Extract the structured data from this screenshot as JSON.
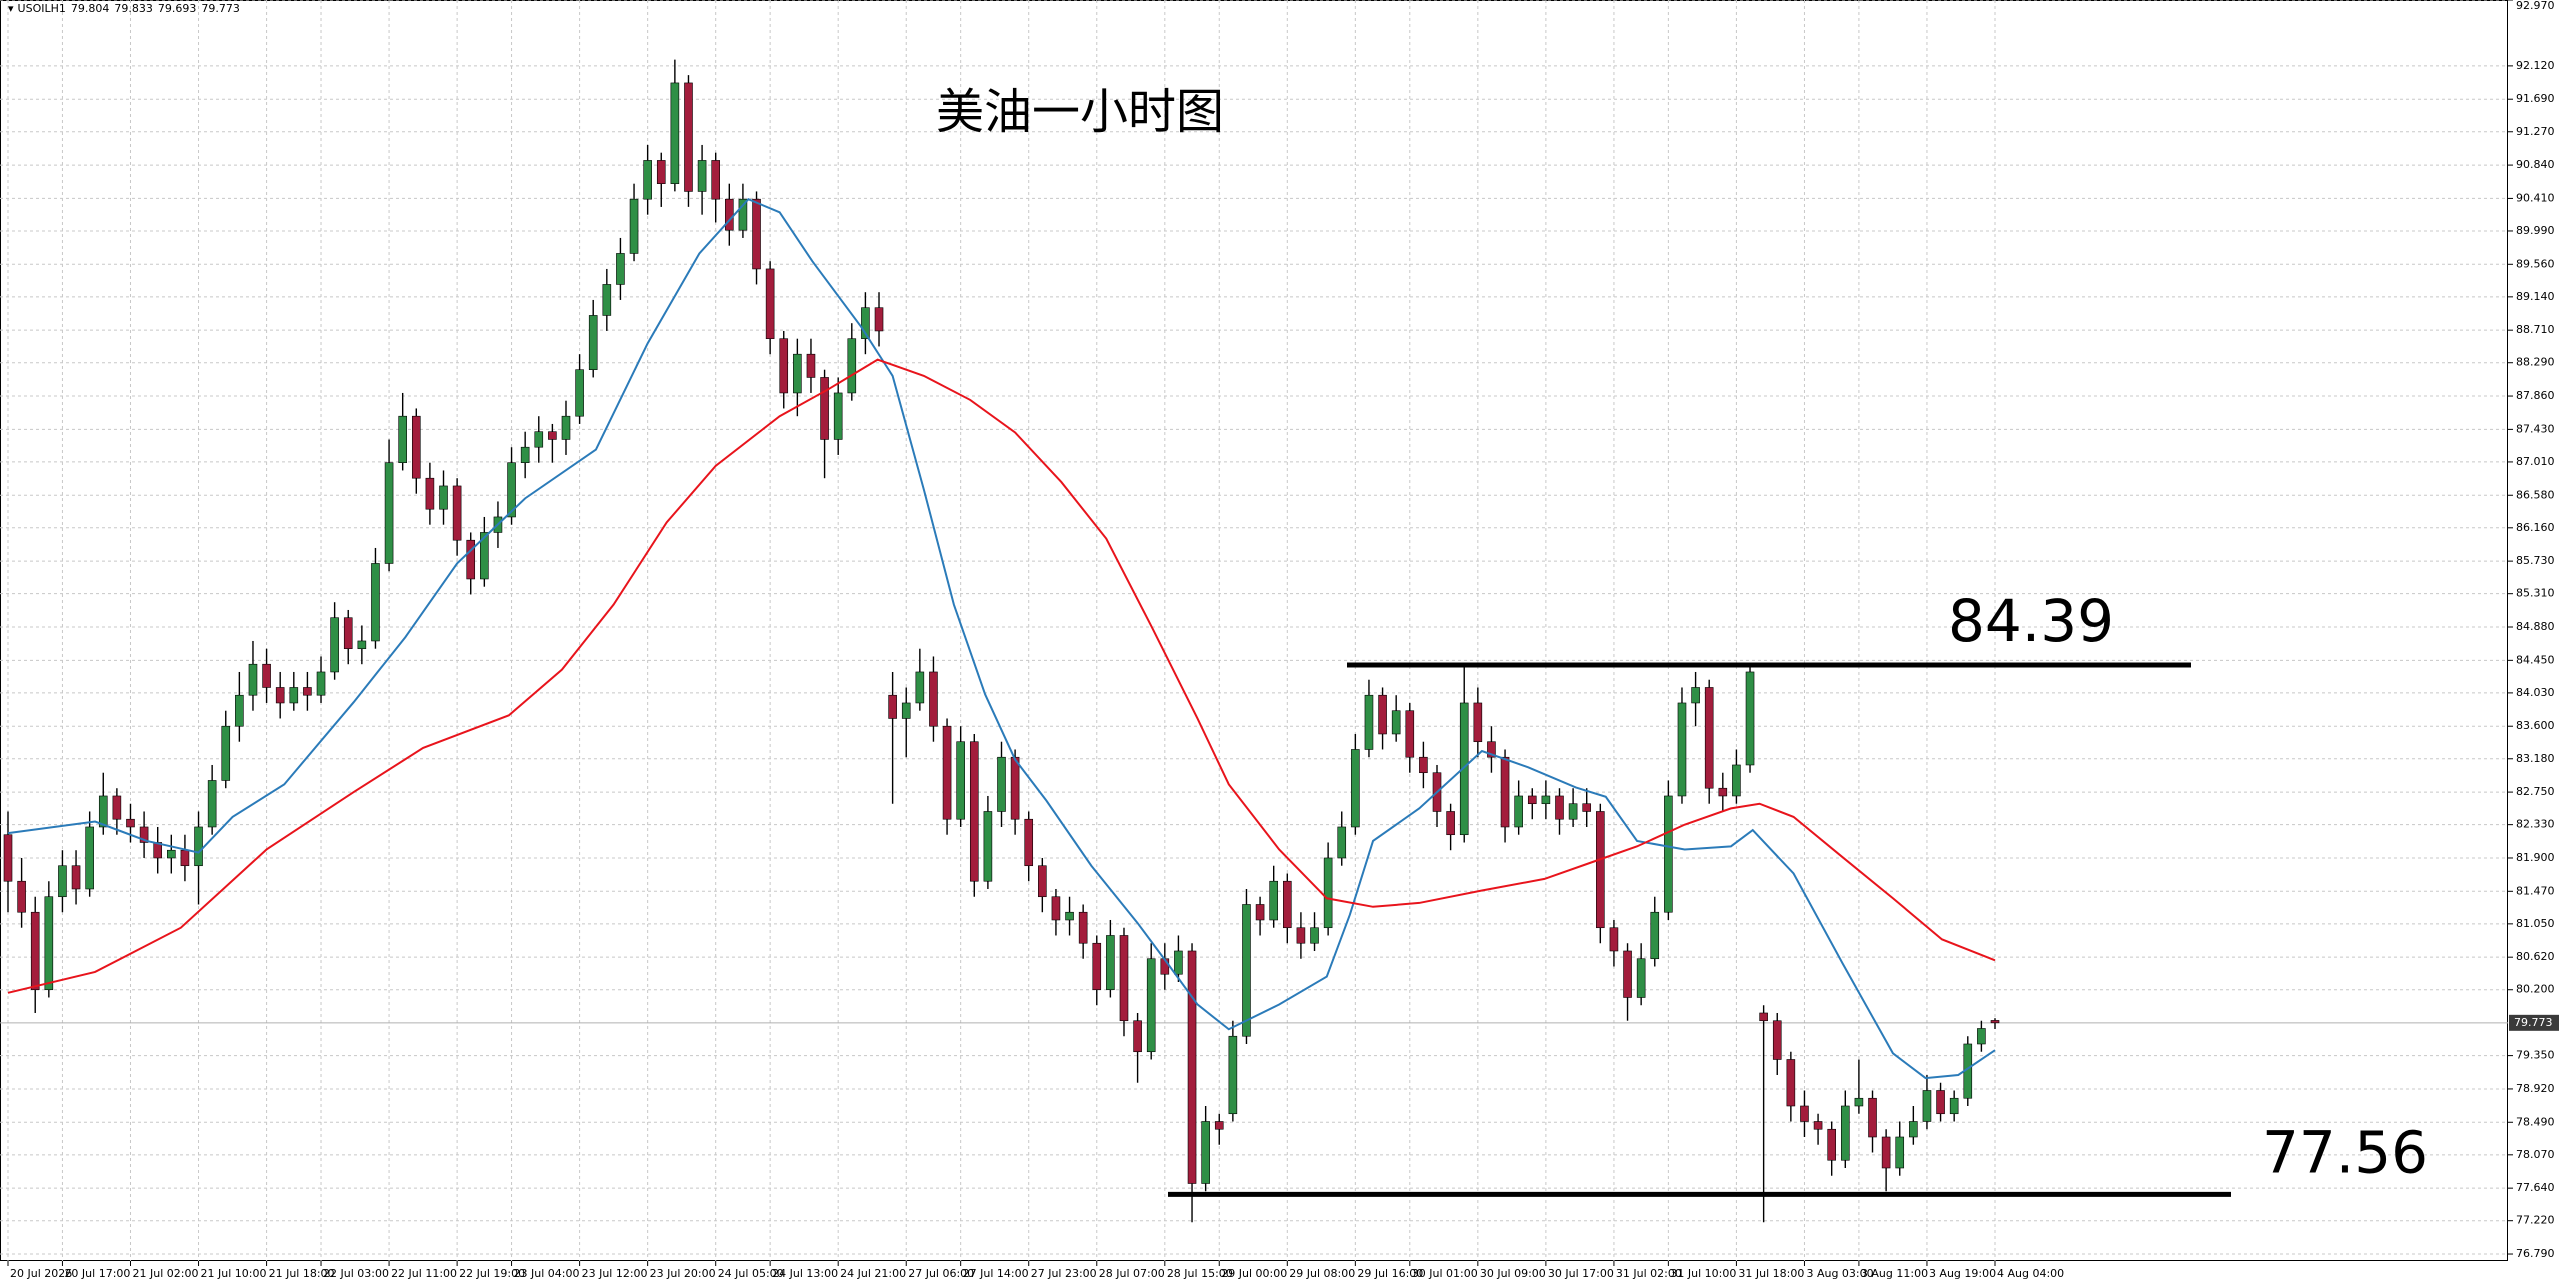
{
  "chart_data": {
    "type": "candlestick",
    "title": "美油一小时图",
    "symbol": "USOILH1",
    "up_color": "#2f8f46",
    "down_color": "#a31d3c",
    "wick_color": "#000000",
    "grid": true,
    "ylim": [
      76.7,
      92.97
    ],
    "yticks": [
      {
        "value": 76.79,
        "label": "76.790"
      },
      {
        "value": 77.22,
        "label": "77.220"
      },
      {
        "value": 77.64,
        "label": "77.640"
      },
      {
        "value": 78.07,
        "label": "78.070"
      },
      {
        "value": 78.49,
        "label": "78.490"
      },
      {
        "value": 78.92,
        "label": "78.920"
      },
      {
        "value": 79.35,
        "label": "79.350"
      },
      {
        "value": 80.2,
        "label": "80.200"
      },
      {
        "value": 80.62,
        "label": "80.620"
      },
      {
        "value": 81.05,
        "label": "81.050"
      },
      {
        "value": 81.47,
        "label": "81.470"
      },
      {
        "value": 81.9,
        "label": "81.900"
      },
      {
        "value": 82.33,
        "label": "82.330"
      },
      {
        "value": 82.75,
        "label": "82.750"
      },
      {
        "value": 83.18,
        "label": "83.180"
      },
      {
        "value": 83.6,
        "label": "83.600"
      },
      {
        "value": 84.03,
        "label": "84.030"
      },
      {
        "value": 84.45,
        "label": "84.450"
      },
      {
        "value": 84.88,
        "label": "84.880"
      },
      {
        "value": 85.31,
        "label": "85.310"
      },
      {
        "value": 85.73,
        "label": "85.730"
      },
      {
        "value": 86.16,
        "label": "86.160"
      },
      {
        "value": 86.58,
        "label": "86.580"
      },
      {
        "value": 87.01,
        "label": "87.010"
      },
      {
        "value": 87.43,
        "label": "87.430"
      },
      {
        "value": 87.86,
        "label": "87.860"
      },
      {
        "value": 88.29,
        "label": "88.290"
      },
      {
        "value": 88.71,
        "label": "88.710"
      },
      {
        "value": 89.14,
        "label": "89.140"
      },
      {
        "value": 89.56,
        "label": "89.560"
      },
      {
        "value": 89.99,
        "label": "89.990"
      },
      {
        "value": 90.41,
        "label": "90.410"
      },
      {
        "value": 90.84,
        "label": "90.840"
      },
      {
        "value": 91.27,
        "label": "91.270"
      },
      {
        "value": 91.69,
        "label": "91.690"
      },
      {
        "value": 92.12,
        "label": "92.120"
      },
      {
        "value": 92.97,
        "label": "92.970"
      }
    ],
    "categories": [
      "20 Jul 2026",
      null,
      null,
      null,
      "20 Jul 17:00",
      null,
      null,
      null,
      null,
      "21 Jul 02:00",
      null,
      null,
      null,
      null,
      "21 Jul 10:00",
      null,
      null,
      null,
      null,
      "21 Jul 18:00",
      null,
      null,
      null,
      "22 Jul 03:00",
      null,
      null,
      null,
      null,
      "22 Jul 11:00",
      null,
      null,
      null,
      null,
      "22 Jul 19:00",
      null,
      null,
      null,
      "23 Jul 04:00",
      null,
      null,
      null,
      null,
      "23 Jul 12:00",
      null,
      null,
      null,
      null,
      "23 Jul 20:00",
      null,
      null,
      null,
      null,
      "24 Jul 05:00",
      null,
      null,
      null,
      "24 Jul 13:00",
      null,
      null,
      null,
      null,
      "24 Jul 21:00",
      null,
      null,
      null,
      null,
      "27 Jul 06:00",
      null,
      null,
      null,
      "27 Jul 14:00",
      null,
      null,
      null,
      null,
      "27 Jul 23:00",
      null,
      null,
      null,
      null,
      "28 Jul 07:00",
      null,
      null,
      null,
      null,
      "28 Jul 15:00",
      null,
      null,
      null,
      "29 Jul 00:00",
      null,
      null,
      null,
      null,
      "29 Jul 08:00",
      null,
      null,
      null,
      null,
      "29 Jul 16:00",
      null,
      null,
      null,
      "30 Jul 01:00",
      null,
      null,
      null,
      null,
      "30 Jul 09:00",
      null,
      null,
      null,
      null,
      "30 Jul 17:00",
      null,
      null,
      null,
      null,
      "31 Jul 02:00",
      null,
      null,
      null,
      "31 Jul 10:00",
      null,
      null,
      null,
      null,
      "31 Jul 18:00",
      null,
      null,
      null,
      null,
      "3 Aug 03:00",
      null,
      null,
      null,
      "3 Aug 11:00",
      null,
      null,
      null,
      null,
      "3 Aug 19:00",
      null,
      null,
      null,
      null,
      "4 Aug 04:00"
    ],
    "ohlc": [
      [
        82.2,
        82.5,
        81.2,
        81.6
      ],
      [
        81.6,
        81.9,
        81.0,
        81.2
      ],
      [
        81.2,
        81.4,
        79.9,
        80.2
      ],
      [
        80.2,
        81.6,
        80.1,
        81.4
      ],
      [
        81.4,
        82.0,
        81.2,
        81.8
      ],
      [
        81.8,
        82.0,
        81.3,
        81.5
      ],
      [
        81.5,
        82.5,
        81.4,
        82.3
      ],
      [
        82.3,
        83.0,
        82.2,
        82.7
      ],
      [
        82.7,
        82.8,
        82.2,
        82.4
      ],
      [
        82.4,
        82.6,
        82.1,
        82.3
      ],
      [
        82.3,
        82.5,
        81.9,
        82.1
      ],
      [
        82.1,
        82.3,
        81.7,
        81.9
      ],
      [
        81.9,
        82.2,
        81.7,
        82.0
      ],
      [
        82.0,
        82.2,
        81.6,
        81.8
      ],
      [
        81.8,
        82.5,
        81.3,
        82.3
      ],
      [
        82.3,
        83.1,
        82.2,
        82.9
      ],
      [
        82.9,
        83.8,
        82.8,
        83.6
      ],
      [
        83.6,
        84.3,
        83.4,
        84.0
      ],
      [
        84.0,
        84.7,
        83.8,
        84.4
      ],
      [
        84.4,
        84.6,
        83.9,
        84.1
      ],
      [
        84.1,
        84.3,
        83.7,
        83.9
      ],
      [
        83.9,
        84.3,
        83.8,
        84.1
      ],
      [
        84.1,
        84.3,
        83.8,
        84.0
      ],
      [
        84.0,
        84.5,
        83.9,
        84.3
      ],
      [
        84.3,
        85.2,
        84.2,
        85.0
      ],
      [
        85.0,
        85.1,
        84.4,
        84.6
      ],
      [
        84.6,
        84.9,
        84.4,
        84.7
      ],
      [
        84.7,
        85.9,
        84.6,
        85.7
      ],
      [
        85.7,
        87.3,
        85.6,
        87.0
      ],
      [
        87.0,
        87.9,
        86.9,
        87.6
      ],
      [
        87.6,
        87.7,
        86.6,
        86.8
      ],
      [
        86.8,
        87.0,
        86.2,
        86.4
      ],
      [
        86.4,
        86.9,
        86.2,
        86.7
      ],
      [
        86.7,
        86.8,
        85.8,
        86.0
      ],
      [
        86.0,
        86.1,
        85.3,
        85.5
      ],
      [
        85.5,
        86.3,
        85.4,
        86.1
      ],
      [
        86.1,
        86.5,
        85.9,
        86.3
      ],
      [
        86.3,
        87.2,
        86.2,
        87.0
      ],
      [
        87.0,
        87.4,
        86.8,
        87.2
      ],
      [
        87.2,
        87.6,
        87.0,
        87.4
      ],
      [
        87.4,
        87.5,
        87.0,
        87.3
      ],
      [
        87.3,
        87.8,
        87.1,
        87.6
      ],
      [
        87.6,
        88.4,
        87.5,
        88.2
      ],
      [
        88.2,
        89.1,
        88.1,
        88.9
      ],
      [
        88.9,
        89.5,
        88.7,
        89.3
      ],
      [
        89.3,
        89.9,
        89.1,
        89.7
      ],
      [
        89.7,
        90.6,
        89.6,
        90.4
      ],
      [
        90.4,
        91.1,
        90.2,
        90.9
      ],
      [
        90.9,
        91.0,
        90.3,
        90.6
      ],
      [
        90.6,
        92.2,
        90.5,
        91.9
      ],
      [
        91.9,
        92.0,
        90.3,
        90.5
      ],
      [
        90.5,
        91.1,
        90.2,
        90.9
      ],
      [
        90.9,
        91.0,
        90.1,
        90.4
      ],
      [
        90.4,
        90.6,
        89.8,
        90.0
      ],
      [
        90.0,
        90.6,
        89.9,
        90.4
      ],
      [
        90.4,
        90.5,
        89.3,
        89.5
      ],
      [
        89.5,
        89.6,
        88.4,
        88.6
      ],
      [
        88.6,
        88.7,
        87.7,
        87.9
      ],
      [
        87.9,
        88.6,
        87.6,
        88.4
      ],
      [
        88.4,
        88.6,
        87.9,
        88.1
      ],
      [
        88.1,
        88.2,
        86.8,
        87.3
      ],
      [
        87.3,
        88.1,
        87.1,
        87.9
      ],
      [
        87.9,
        88.8,
        87.8,
        88.6
      ],
      [
        88.6,
        89.2,
        88.4,
        89.0
      ],
      [
        89.0,
        89.2,
        88.5,
        88.7
      ],
      [
        84.0,
        84.3,
        82.6,
        83.7
      ],
      [
        83.7,
        84.1,
        83.2,
        83.9
      ],
      [
        83.9,
        84.6,
        83.8,
        84.3
      ],
      [
        84.3,
        84.5,
        83.4,
        83.6
      ],
      [
        83.6,
        83.7,
        82.2,
        82.4
      ],
      [
        82.4,
        83.6,
        82.3,
        83.4
      ],
      [
        83.4,
        83.5,
        81.4,
        81.6
      ],
      [
        81.6,
        82.7,
        81.5,
        82.5
      ],
      [
        82.5,
        83.4,
        82.3,
        83.2
      ],
      [
        83.2,
        83.3,
        82.2,
        82.4
      ],
      [
        82.4,
        82.5,
        81.6,
        81.8
      ],
      [
        81.8,
        81.9,
        81.2,
        81.4
      ],
      [
        81.4,
        81.5,
        80.9,
        81.1
      ],
      [
        81.1,
        81.4,
        80.9,
        81.2
      ],
      [
        81.2,
        81.3,
        80.6,
        80.8
      ],
      [
        80.8,
        80.9,
        80.0,
        80.2
      ],
      [
        80.2,
        81.1,
        80.1,
        80.9
      ],
      [
        80.9,
        81.0,
        79.6,
        79.8
      ],
      [
        79.8,
        79.9,
        79.0,
        79.4
      ],
      [
        79.4,
        80.8,
        79.3,
        80.6
      ],
      [
        80.6,
        80.8,
        80.2,
        80.4
      ],
      [
        80.4,
        80.9,
        80.3,
        80.7
      ],
      [
        80.7,
        80.8,
        77.2,
        77.7
      ],
      [
        77.7,
        78.7,
        77.6,
        78.5
      ],
      [
        78.5,
        78.6,
        78.2,
        78.4
      ],
      [
        78.6,
        79.8,
        78.5,
        79.6
      ],
      [
        79.6,
        81.5,
        79.5,
        81.3
      ],
      [
        81.3,
        81.4,
        80.9,
        81.1
      ],
      [
        81.1,
        81.8,
        81.0,
        81.6
      ],
      [
        81.6,
        81.7,
        80.8,
        81.0
      ],
      [
        81.0,
        81.2,
        80.6,
        80.8
      ],
      [
        80.8,
        81.2,
        80.7,
        81.0
      ],
      [
        81.0,
        82.1,
        80.9,
        81.9
      ],
      [
        81.9,
        82.5,
        81.8,
        82.3
      ],
      [
        82.3,
        83.5,
        82.2,
        83.3
      ],
      [
        83.3,
        84.2,
        83.2,
        84.0
      ],
      [
        84.0,
        84.1,
        83.3,
        83.5
      ],
      [
        83.5,
        84.0,
        83.4,
        83.8
      ],
      [
        83.8,
        83.9,
        83.0,
        83.2
      ],
      [
        83.2,
        83.4,
        82.8,
        83.0
      ],
      [
        83.0,
        83.1,
        82.3,
        82.5
      ],
      [
        82.5,
        82.6,
        82.0,
        82.2
      ],
      [
        82.2,
        84.4,
        82.1,
        83.9
      ],
      [
        83.9,
        84.1,
        83.2,
        83.4
      ],
      [
        83.4,
        83.6,
        83.0,
        83.2
      ],
      [
        83.2,
        83.3,
        82.1,
        82.3
      ],
      [
        82.3,
        82.9,
        82.2,
        82.7
      ],
      [
        82.7,
        82.8,
        82.4,
        82.6
      ],
      [
        82.6,
        82.9,
        82.4,
        82.7
      ],
      [
        82.7,
        82.8,
        82.2,
        82.4
      ],
      [
        82.4,
        82.8,
        82.3,
        82.6
      ],
      [
        82.6,
        82.8,
        82.3,
        82.5
      ],
      [
        82.5,
        82.6,
        80.8,
        81.0
      ],
      [
        81.0,
        81.1,
        80.5,
        80.7
      ],
      [
        80.7,
        80.8,
        79.8,
        80.1
      ],
      [
        80.1,
        80.8,
        80.0,
        80.6
      ],
      [
        80.6,
        81.4,
        80.5,
        81.2
      ],
      [
        81.2,
        82.9,
        81.1,
        82.7
      ],
      [
        82.7,
        84.1,
        82.6,
        83.9
      ],
      [
        83.9,
        84.3,
        83.6,
        84.1
      ],
      [
        84.1,
        84.2,
        82.6,
        82.8
      ],
      [
        82.8,
        83.0,
        82.5,
        82.7
      ],
      [
        82.7,
        83.3,
        82.6,
        83.1
      ],
      [
        83.1,
        84.4,
        83.0,
        84.3
      ],
      [
        79.9,
        80.0,
        77.2,
        79.8
      ],
      [
        79.8,
        79.9,
        79.1,
        79.3
      ],
      [
        79.3,
        79.4,
        78.5,
        78.7
      ],
      [
        78.7,
        78.9,
        78.3,
        78.5
      ],
      [
        78.5,
        78.6,
        78.2,
        78.4
      ],
      [
        78.4,
        78.5,
        77.8,
        78.0
      ],
      [
        78.0,
        78.9,
        77.9,
        78.7
      ],
      [
        78.7,
        79.3,
        78.6,
        78.8
      ],
      [
        78.8,
        78.9,
        78.1,
        78.3
      ],
      [
        78.3,
        78.4,
        77.6,
        77.9
      ],
      [
        77.9,
        78.5,
        77.8,
        78.3
      ],
      [
        78.3,
        78.7,
        78.2,
        78.5
      ],
      [
        78.5,
        79.1,
        78.4,
        78.9
      ],
      [
        78.9,
        79.0,
        78.5,
        78.6
      ],
      [
        78.6,
        78.9,
        78.5,
        78.8
      ],
      [
        78.8,
        79.6,
        78.7,
        79.5
      ],
      [
        79.5,
        79.8,
        79.4,
        79.7
      ],
      [
        79.804,
        79.833,
        79.693,
        79.773
      ]
    ],
    "series": [
      {
        "color": "#2b7bb9",
        "x": [
          0,
          6.4,
          10.2,
          14,
          16.5,
          20.3,
          25.4,
          29.2,
          33,
          38,
          43.2,
          47,
          50.8,
          54.4,
          56.7,
          59.1,
          62.7,
          65,
          67.3,
          69.5,
          71.8,
          74,
          76.3,
          79.6,
          83,
          85.2,
          87.4,
          89.7,
          93.4,
          96.9,
          98.6,
          100.3,
          103.7,
          108.3,
          111.7,
          115.2,
          117.4,
          119.7,
          123.2,
          126.6,
          128.2,
          131.2,
          134.8,
          138.5,
          140.9,
          143.3,
          146
        ],
        "values": [
          82.22,
          82.37,
          82.12,
          81.97,
          82.43,
          82.85,
          83.91,
          84.75,
          85.7,
          86.54,
          87.17,
          88.54,
          89.7,
          90.4,
          90.23,
          89.6,
          88.75,
          88.12,
          86.65,
          85.17,
          84.01,
          83.17,
          82.64,
          81.8,
          81.06,
          80.54,
          80.01,
          79.69,
          80.01,
          80.37,
          81.17,
          82.12,
          82.54,
          83.28,
          83.07,
          82.81,
          82.69,
          82.12,
          82.01,
          82.05,
          82.26,
          81.7,
          80.54,
          79.38,
          79.06,
          79.1,
          79.42
        ]
      },
      {
        "color": "#e8141c",
        "x": [
          0,
          6.4,
          12.7,
          19,
          25.4,
          30.5,
          36.8,
          40.7,
          44.5,
          48.4,
          52,
          56.7,
          60.3,
          63.9,
          67.3,
          70.7,
          74,
          77.4,
          80.7,
          84.1,
          87.4,
          89.7,
          93.4,
          96.9,
          100.3,
          103.7,
          108.3,
          112.9,
          116.3,
          119.7,
          123.2,
          126.6,
          128.7,
          131.2,
          134.8,
          138.5,
          142.1,
          146
        ],
        "values": [
          80.16,
          80.43,
          81.0,
          82.01,
          82.75,
          83.32,
          83.74,
          84.33,
          85.17,
          86.23,
          86.96,
          87.6,
          87.95,
          88.33,
          88.12,
          87.81,
          87.39,
          86.75,
          86.02,
          84.86,
          83.7,
          82.85,
          82.01,
          81.38,
          81.27,
          81.32,
          81.48,
          81.63,
          81.84,
          82.05,
          82.33,
          82.54,
          82.6,
          82.43,
          81.91,
          81.38,
          80.85,
          80.58
        ]
      }
    ],
    "levels": [
      84.39,
      77.56
    ]
  }
}
